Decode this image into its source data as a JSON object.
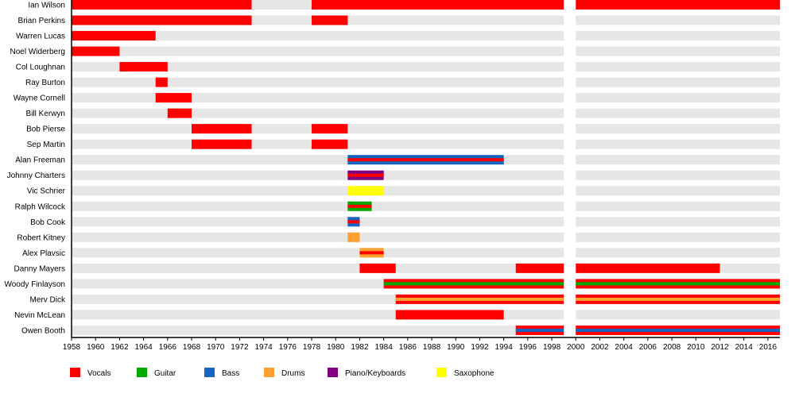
{
  "chart_data": {
    "type": "timeline",
    "title": "",
    "xlim": [
      1958,
      2017
    ],
    "x_ticks": [
      1958,
      1960,
      1962,
      1964,
      1966,
      1968,
      1970,
      1972,
      1974,
      1976,
      1978,
      1980,
      1982,
      1984,
      1986,
      1988,
      1990,
      1992,
      1994,
      1996,
      1998,
      2000,
      2002,
      2004,
      2006,
      2008,
      2010,
      2012,
      2014,
      2016
    ],
    "roles": [
      {
        "name": "Vocals",
        "color": "#ff0000"
      },
      {
        "name": "Guitar",
        "color": "#00aa00"
      },
      {
        "name": "Bass",
        "color": "#1464c0"
      },
      {
        "name": "Drums",
        "color": "#ffa030"
      },
      {
        "name": "Piano/Keyboards",
        "color": "#800080"
      },
      {
        "name": "Saxophone",
        "color": "#ffff00"
      }
    ],
    "legend_position": "bottom",
    "members": [
      {
        "name": "Ian Wilson",
        "roles": [
          "Vocals"
        ],
        "periods": [
          [
            1958,
            1973
          ],
          [
            1978,
            1999
          ],
          [
            2000,
            2017
          ]
        ]
      },
      {
        "name": "Brian Perkins",
        "roles": [
          "Vocals"
        ],
        "periods": [
          [
            1958,
            1973
          ],
          [
            1978,
            1981
          ]
        ]
      },
      {
        "name": "Warren Lucas",
        "roles": [
          "Vocals"
        ],
        "periods": [
          [
            1958,
            1965
          ]
        ]
      },
      {
        "name": "Noel Widerberg",
        "roles": [
          "Vocals"
        ],
        "periods": [
          [
            1958,
            1962
          ]
        ]
      },
      {
        "name": "Col Loughnan",
        "roles": [
          "Vocals"
        ],
        "periods": [
          [
            1962,
            1966
          ]
        ]
      },
      {
        "name": "Ray Burton",
        "roles": [
          "Vocals"
        ],
        "periods": [
          [
            1965,
            1966
          ]
        ]
      },
      {
        "name": "Wayne Cornell",
        "roles": [
          "Vocals"
        ],
        "periods": [
          [
            1965,
            1968
          ]
        ]
      },
      {
        "name": "Bill Kerwyn",
        "roles": [
          "Vocals"
        ],
        "periods": [
          [
            1966,
            1968
          ]
        ]
      },
      {
        "name": "Bob Pierse",
        "roles": [
          "Vocals"
        ],
        "periods": [
          [
            1968,
            1973
          ],
          [
            1978,
            1981
          ]
        ]
      },
      {
        "name": "Sep Martin",
        "roles": [
          "Vocals"
        ],
        "periods": [
          [
            1968,
            1973
          ],
          [
            1978,
            1981
          ]
        ]
      },
      {
        "name": "Alan Freeman",
        "roles": [
          "Bass",
          "Vocals"
        ],
        "periods": [
          [
            1981,
            1994
          ]
        ]
      },
      {
        "name": "Johnny Charters",
        "roles": [
          "Piano/Keyboards",
          "Vocals"
        ],
        "periods": [
          [
            1981,
            1984
          ]
        ]
      },
      {
        "name": "Vic Schrier",
        "roles": [
          "Saxophone"
        ],
        "periods": [
          [
            1981,
            1984
          ]
        ]
      },
      {
        "name": "Ralph Wilcock",
        "roles": [
          "Guitar",
          "Vocals"
        ],
        "periods": [
          [
            1981,
            1983
          ]
        ]
      },
      {
        "name": "Bob Cook",
        "roles": [
          "Bass",
          "Vocals"
        ],
        "periods": [
          [
            1981,
            1982
          ]
        ]
      },
      {
        "name": "Robert Kitney",
        "roles": [
          "Drums"
        ],
        "periods": [
          [
            1981,
            1982
          ]
        ]
      },
      {
        "name": "Alex Plavsic",
        "roles": [
          "Drums",
          "Vocals"
        ],
        "periods": [
          [
            1982,
            1984
          ]
        ]
      },
      {
        "name": "Danny Mayers",
        "roles": [
          "Vocals"
        ],
        "periods": [
          [
            1982,
            1985
          ],
          [
            1995,
            1999
          ],
          [
            2000,
            2012
          ]
        ]
      },
      {
        "name": "Woody Finlayson",
        "roles": [
          "Vocals",
          "Guitar"
        ],
        "periods": [
          [
            1984,
            1999
          ],
          [
            2000,
            2017
          ]
        ]
      },
      {
        "name": "Merv Dick",
        "roles": [
          "Vocals",
          "Drums"
        ],
        "periods": [
          [
            1985,
            1999
          ],
          [
            2000,
            2017
          ]
        ]
      },
      {
        "name": "Nevin McLean",
        "roles": [
          "Vocals"
        ],
        "periods": [
          [
            1985,
            1994
          ]
        ]
      },
      {
        "name": "Owen Booth",
        "roles": [
          "Vocals",
          "Bass"
        ],
        "periods": [
          [
            1995,
            1999
          ],
          [
            2000,
            2017
          ]
        ]
      }
    ]
  }
}
